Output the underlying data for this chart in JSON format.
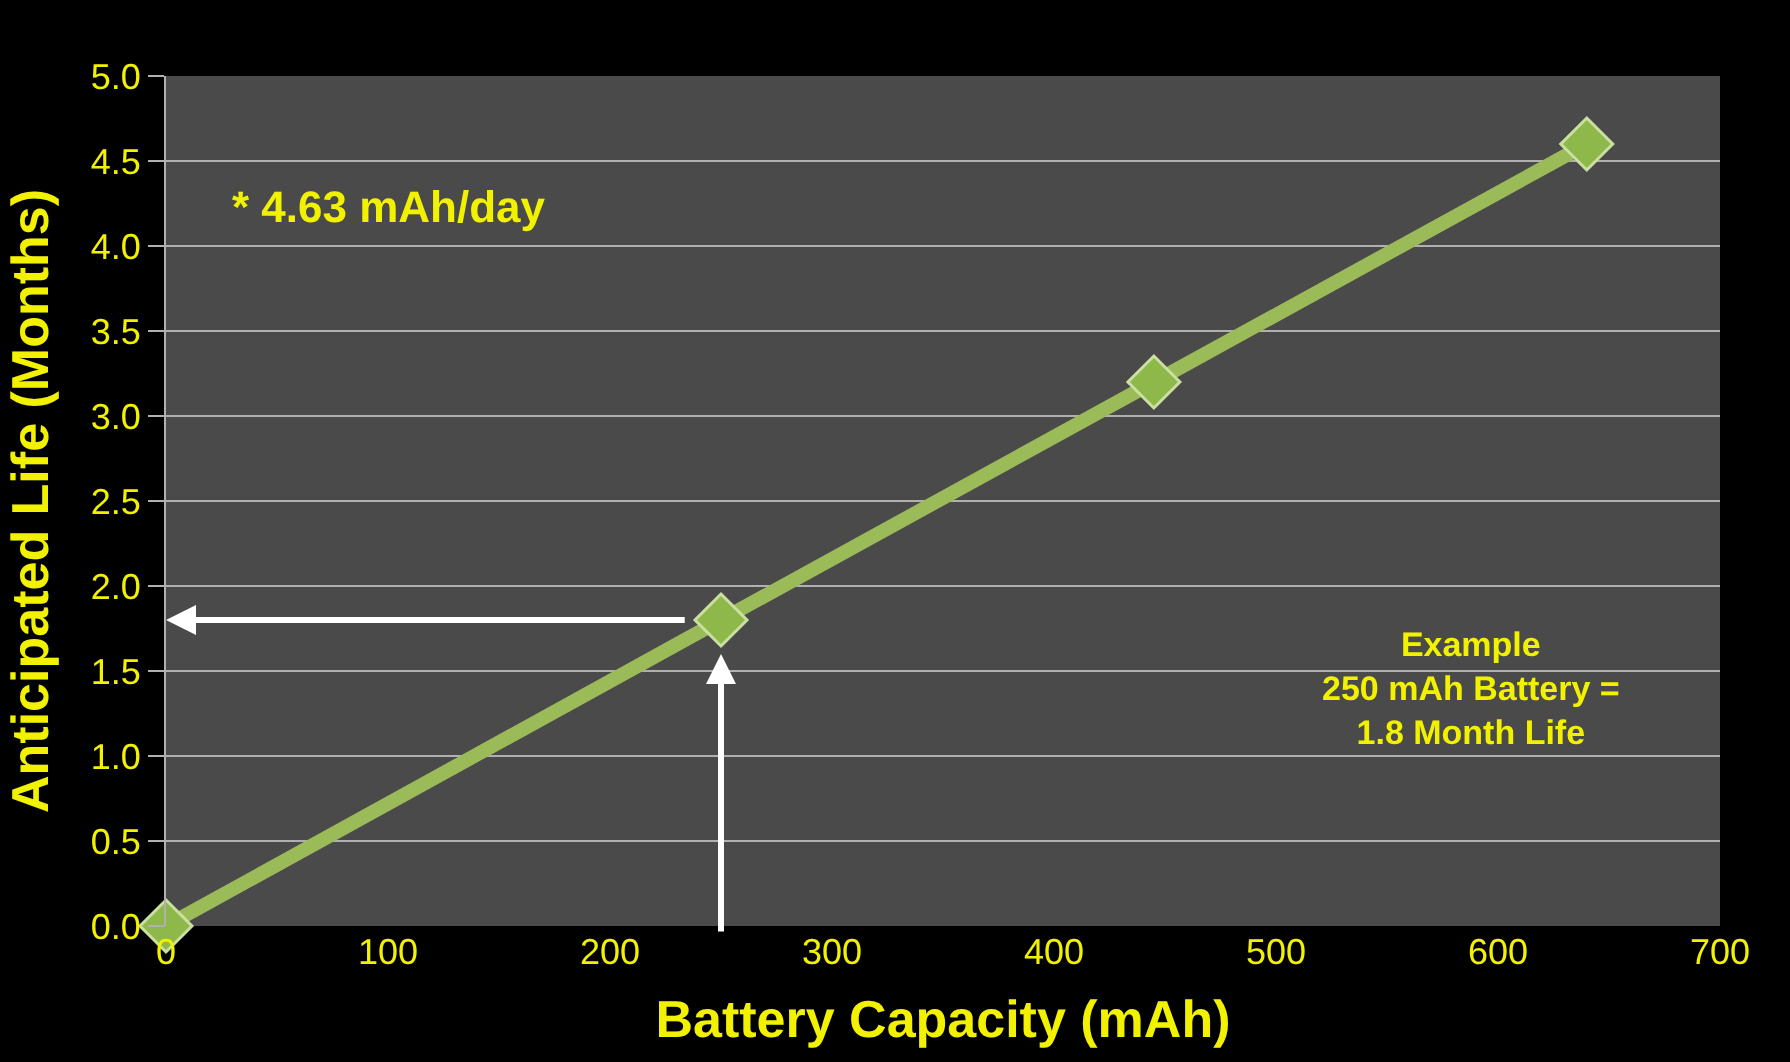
{
  "chart_data": {
    "type": "line",
    "xlabel": "Battery Capacity (mAh)",
    "ylabel": "Anticipated Life (Months)",
    "x": [
      0,
      250,
      445,
      640
    ],
    "series": [
      {
        "color": "#9bbb59",
        "values": [
          0,
          1.8,
          3.2,
          4.6
        ]
      }
    ],
    "xlim": [
      0,
      700
    ],
    "xticks": [
      0,
      100,
      200,
      300,
      400,
      500,
      600,
      700
    ],
    "ylim": [
      0,
      5
    ],
    "yticks": [
      {
        "value": 0,
        "label": "0.0"
      },
      {
        "value": 0.5,
        "label": "0.5"
      },
      {
        "value": 1,
        "label": "1.0"
      },
      {
        "value": 1.5,
        "label": "1.5"
      },
      {
        "value": 2,
        "label": "2.0"
      },
      {
        "value": 2.5,
        "label": "2.5"
      },
      {
        "value": 3,
        "label": "3.0"
      },
      {
        "value": 3.5,
        "label": "3.5"
      },
      {
        "value": 4,
        "label": "4.0"
      },
      {
        "value": 4.5,
        "label": "4.5"
      },
      {
        "value": 5,
        "label": "5.0"
      }
    ],
    "grid": "y",
    "marker": "diamond",
    "line_style": "solid",
    "annotations": [
      "* 4.63 mAh/day",
      "Example\n250 mAh Battery =\n1.8 Month Life"
    ]
  }
}
